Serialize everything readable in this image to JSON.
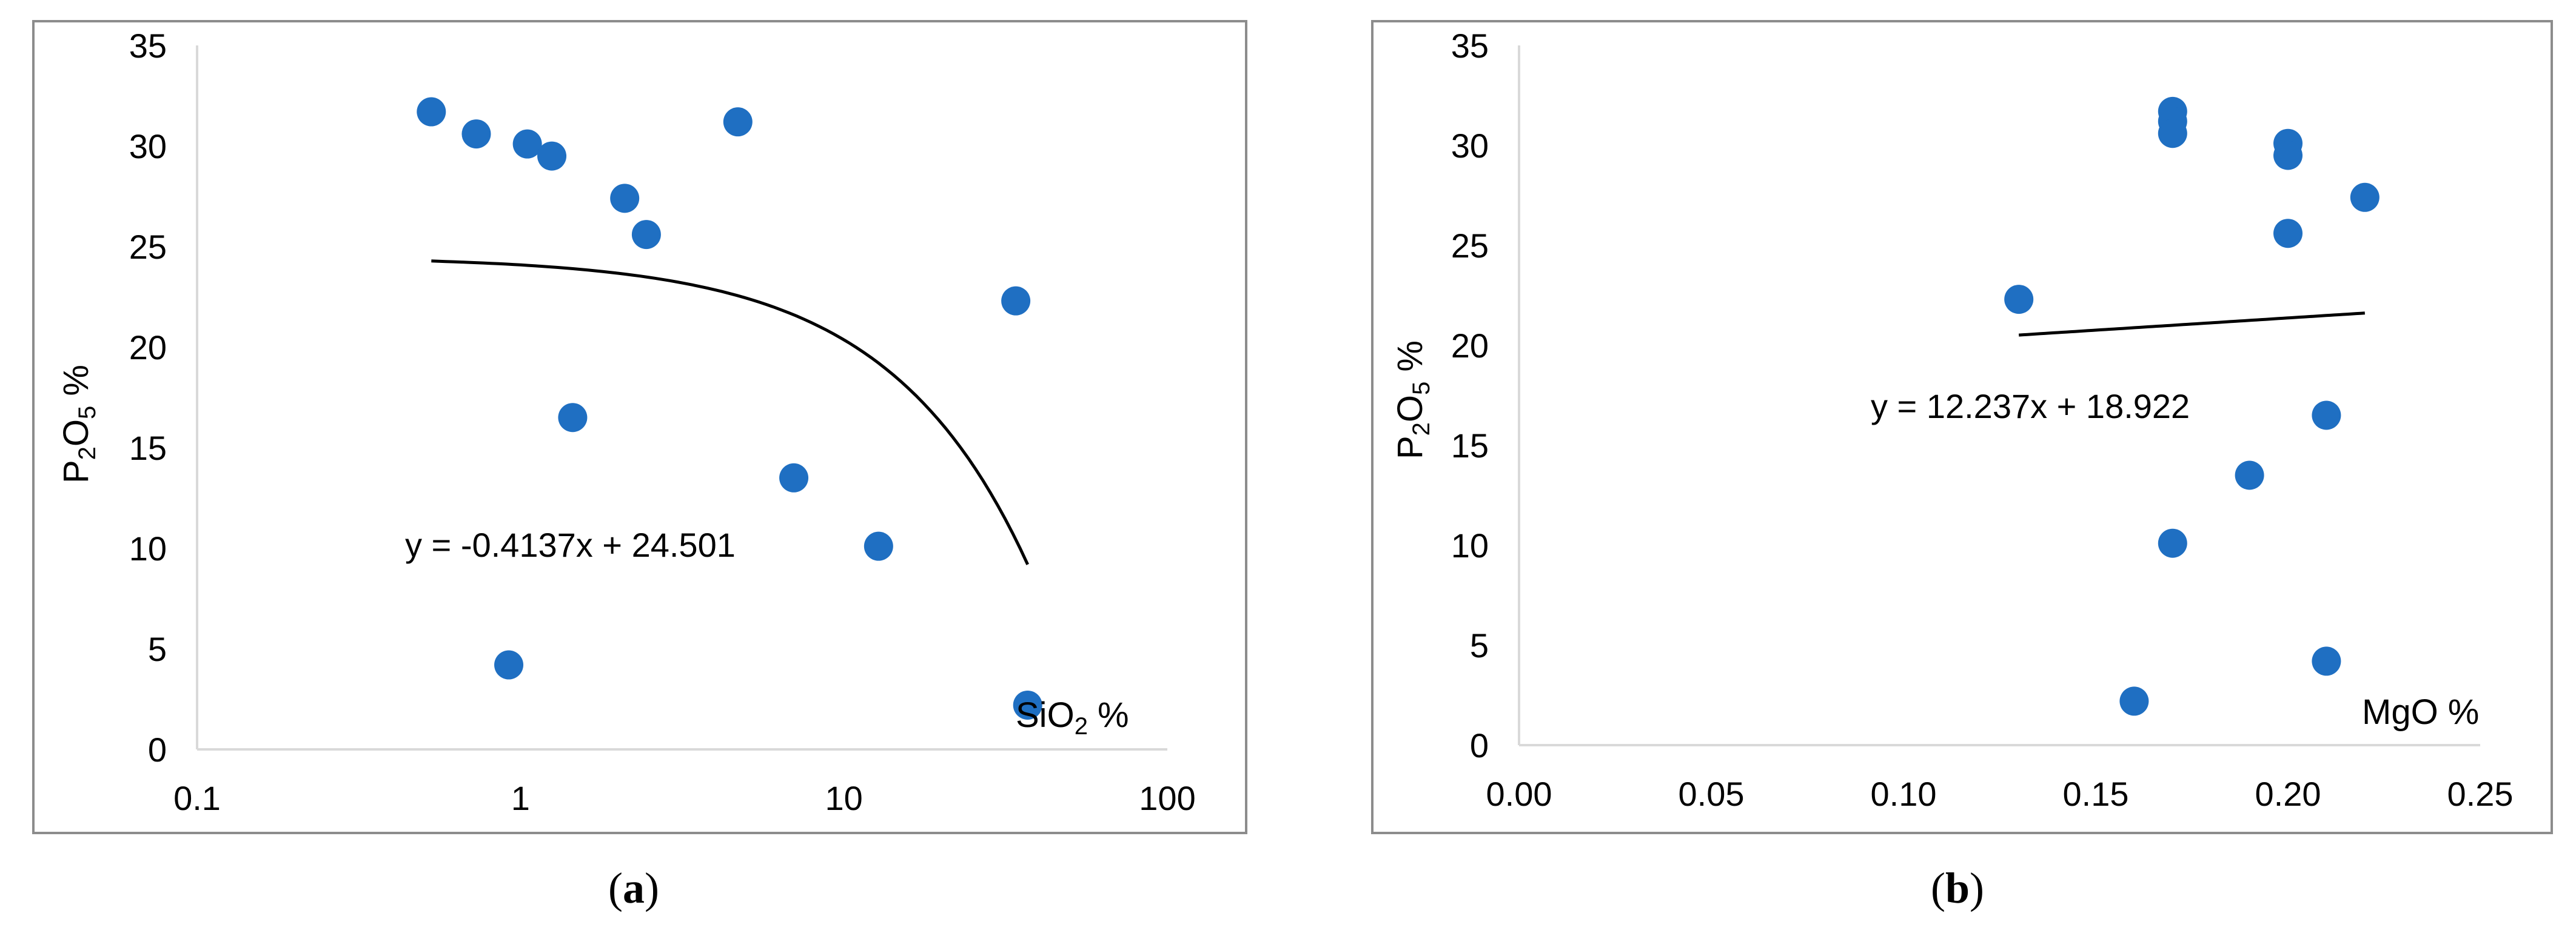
{
  "chart_data": [
    {
      "type": "scatter",
      "panel_label": "a",
      "xlabel": "SiO2 %",
      "ylabel": "P2O5 %",
      "x_scale": "log",
      "xlim": [
        0.1,
        100
      ],
      "ylim": [
        0,
        35
      ],
      "x_ticks": [
        "0.1",
        "1",
        "10",
        "100"
      ],
      "y_ticks": [
        "0",
        "5",
        "10",
        "15",
        "20",
        "25",
        "30",
        "35"
      ],
      "grid": false,
      "point_color": "#1f6fc2",
      "points": [
        {
          "x": 0.53,
          "y": 31.7
        },
        {
          "x": 0.73,
          "y": 30.6
        },
        {
          "x": 0.92,
          "y": 4.2
        },
        {
          "x": 1.05,
          "y": 30.1
        },
        {
          "x": 1.25,
          "y": 29.5
        },
        {
          "x": 1.45,
          "y": 16.5
        },
        {
          "x": 2.1,
          "y": 27.4
        },
        {
          "x": 2.45,
          "y": 25.6
        },
        {
          "x": 4.7,
          "y": 31.2
        },
        {
          "x": 7.0,
          "y": 13.5
        },
        {
          "x": 12.8,
          "y": 10.1
        },
        {
          "x": 34.0,
          "y": 22.3
        },
        {
          "x": 37.0,
          "y": 2.2
        }
      ],
      "trendline": {
        "type": "linear",
        "slope": -0.4137,
        "intercept": 24.501,
        "x_range": [
          0.53,
          37.0
        ]
      },
      "equation": "y = -0.4137x + 24.501"
    },
    {
      "type": "scatter",
      "panel_label": "b",
      "xlabel": "MgO %",
      "ylabel": "P2O5 %",
      "x_scale": "linear",
      "xlim": [
        0,
        0.25
      ],
      "ylim": [
        0,
        35
      ],
      "x_ticks": [
        "0.00",
        "0.05",
        "0.10",
        "0.15",
        "0.20",
        "0.25"
      ],
      "y_ticks": [
        "0",
        "5",
        "10",
        "15",
        "20",
        "25",
        "30",
        "35"
      ],
      "grid": false,
      "point_color": "#1f6fc2",
      "points": [
        {
          "x": 0.13,
          "y": 22.3
        },
        {
          "x": 0.16,
          "y": 2.2
        },
        {
          "x": 0.17,
          "y": 31.7
        },
        {
          "x": 0.17,
          "y": 31.2
        },
        {
          "x": 0.17,
          "y": 30.6
        },
        {
          "x": 0.17,
          "y": 10.1
        },
        {
          "x": 0.19,
          "y": 13.5
        },
        {
          "x": 0.2,
          "y": 30.1
        },
        {
          "x": 0.2,
          "y": 29.5
        },
        {
          "x": 0.2,
          "y": 25.6
        },
        {
          "x": 0.21,
          "y": 16.5
        },
        {
          "x": 0.21,
          "y": 4.2
        },
        {
          "x": 0.22,
          "y": 27.4
        }
      ],
      "trendline": {
        "type": "linear",
        "slope": 12.237,
        "intercept": 18.922,
        "x_range": [
          0.13,
          0.22
        ]
      },
      "equation": "y = 12.237x + 18.922"
    }
  ]
}
